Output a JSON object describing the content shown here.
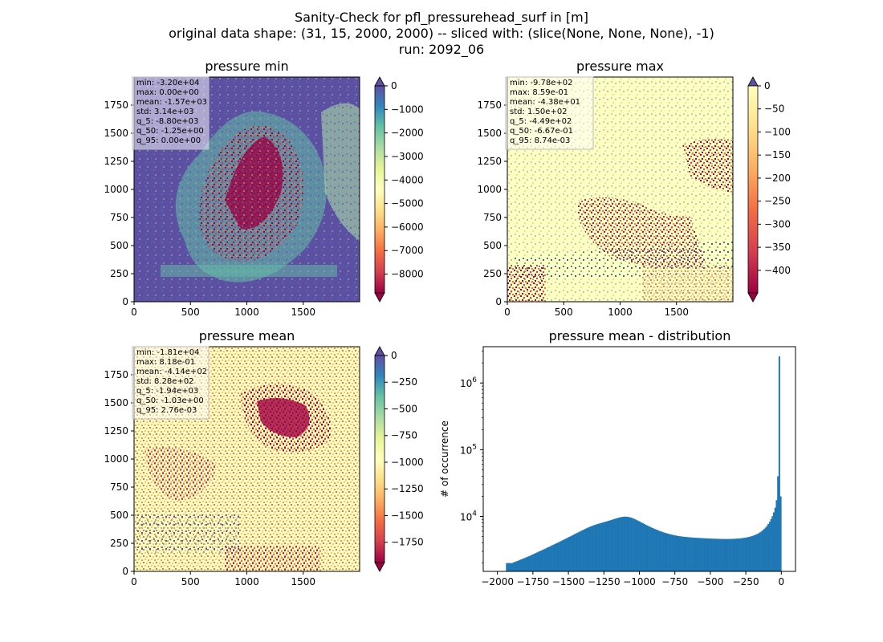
{
  "figure": {
    "title_lines": [
      "Sanity-Check for pfl_pressurehead_surf in [m]",
      "original data shape: (31, 15, 2000, 2000) -- sliced with: (slice(None, None, None), -1)",
      "run: 2092_06"
    ]
  },
  "chart_data": [
    {
      "type": "heatmap",
      "title": "pressure min",
      "colormap": "Spectral",
      "xlim": [
        0,
        2000
      ],
      "ylim": [
        0,
        2000
      ],
      "xticks": [
        "0",
        "500",
        "1000",
        "1500"
      ],
      "yticks": [
        "0",
        "250",
        "500",
        "750",
        "1000",
        "1250",
        "1500",
        "1750"
      ],
      "colorbar": {
        "range": [
          -8800,
          0
        ],
        "extend": "both",
        "ticks": [
          "0",
          "−1000",
          "−2000",
          "−3000",
          "−4000",
          "−5000",
          "−6000",
          "−7000",
          "−8000"
        ]
      },
      "stats": [
        "min: -3.20e+04",
        "max: 0.00e+00",
        "mean: -1.57e+03",
        "std: 3.14e+03",
        "q_5: -8.80e+03",
        "q_50: -1.25e+00",
        "q_95: 0.00e+00"
      ]
    },
    {
      "type": "heatmap",
      "title": "pressure max",
      "colormap": "Spectral",
      "xlim": [
        0,
        2000
      ],
      "ylim": [
        0,
        2000
      ],
      "xticks": [
        "0",
        "500",
        "1000",
        "1500"
      ],
      "yticks": [
        "0",
        "250",
        "500",
        "750",
        "1000",
        "1250",
        "1500",
        "1750"
      ],
      "colorbar": {
        "range": [
          -449,
          0
        ],
        "extend": "both",
        "ticks": [
          "0",
          "−50",
          "−100",
          "−150",
          "−200",
          "−250",
          "−300",
          "−350",
          "−400"
        ]
      },
      "stats": [
        "min: -9.78e+02",
        "max: 8.59e-01",
        "mean: -4.38e+01",
        "std: 1.50e+02",
        "q_5: -4.49e+02",
        "q_50: -6.67e-01",
        "q_95: 8.74e-03"
      ]
    },
    {
      "type": "heatmap",
      "title": "pressure mean",
      "colormap": "Spectral",
      "xlim": [
        0,
        2000
      ],
      "ylim": [
        0,
        2000
      ],
      "xticks": [
        "0",
        "500",
        "1000",
        "1500"
      ],
      "yticks": [
        "0",
        "250",
        "500",
        "750",
        "1000",
        "1250",
        "1500",
        "1750"
      ],
      "colorbar": {
        "range": [
          -1940,
          0
        ],
        "extend": "both",
        "ticks": [
          "0",
          "−250",
          "−500",
          "−750",
          "−1000",
          "−1250",
          "−1500",
          "−1750"
        ]
      },
      "stats": [
        "min: -1.81e+04",
        "max: 8.18e-01",
        "mean: -4.14e+02",
        "std: 8.28e+02",
        "q_5: -1.94e+03",
        "q_50: -1.03e+00",
        "q_95: 2.76e-03"
      ]
    },
    {
      "type": "bar",
      "title": "pressure mean - distribution",
      "ylabel": "# of occurrence",
      "yscale": "log",
      "xlim": [
        -2100,
        100
      ],
      "ylim": [
        1500,
        3500000
      ],
      "xticks": [
        "−2000",
        "−1750",
        "−1500",
        "−1250",
        "−1000",
        "−750",
        "−500",
        "−250",
        "0"
      ],
      "yticks": [
        "10^4",
        "10^5",
        "10^6"
      ],
      "bar_color": "#1f77b4",
      "bin_edges": [
        -1940,
        0
      ],
      "bins": 200,
      "counts": [
        2000,
        2000,
        2000,
        2000,
        2000,
        2050,
        2080,
        2120,
        2160,
        2200,
        2250,
        2290,
        2340,
        2380,
        2430,
        2480,
        2530,
        2580,
        2640,
        2700,
        2760,
        2820,
        2880,
        2950,
        3010,
        3080,
        3150,
        3220,
        3290,
        3370,
        3450,
        3520,
        3600,
        3690,
        3770,
        3860,
        3950,
        4040,
        4130,
        4230,
        4330,
        4430,
        4540,
        4650,
        4760,
        4880,
        5000,
        5120,
        5250,
        5380,
        5510,
        5640,
        5780,
        5920,
        6060,
        6200,
        6350,
        6500,
        6650,
        6790,
        6930,
        7070,
        7200,
        7330,
        7450,
        7570,
        7690,
        7800,
        7910,
        8020,
        8130,
        8240,
        8350,
        8470,
        8590,
        8720,
        8850,
        8990,
        9130,
        9270,
        9400,
        9530,
        9650,
        9760,
        9850,
        9900,
        9920,
        9900,
        9850,
        9760,
        9630,
        9480,
        9310,
        9120,
        8920,
        8710,
        8500,
        8290,
        8080,
        7880,
        7690,
        7500,
        7330,
        7160,
        7000,
        6850,
        6700,
        6560,
        6430,
        6300,
        6180,
        6070,
        5960,
        5860,
        5770,
        5680,
        5600,
        5520,
        5450,
        5380,
        5320,
        5260,
        5210,
        5160,
        5120,
        5080,
        5040,
        5010,
        4980,
        4950,
        4930,
        4900,
        4880,
        4860,
        4840,
        4820,
        4810,
        4790,
        4780,
        4760,
        4750,
        4740,
        4730,
        4720,
        4700,
        4690,
        4680,
        4670,
        4660,
        4650,
        4640,
        4630,
        4620,
        4620,
        4610,
        4600,
        4600,
        4590,
        4590,
        4590,
        4590,
        4590,
        4600,
        4600,
        4610,
        4620,
        4630,
        4650,
        4660,
        4680,
        4700,
        4730,
        4760,
        4790,
        4830,
        4880,
        4930,
        4990,
        5060,
        5140,
        5230,
        5340,
        5460,
        5600,
        5770,
        5970,
        6200,
        6480,
        6810,
        7200,
        7700,
        8300,
        9100,
        10100,
        11500,
        13500,
        17500,
        40000,
        2500000,
        20000
      ]
    }
  ]
}
